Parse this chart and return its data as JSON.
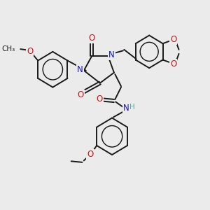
{
  "background_color": "#ebebeb",
  "bond_color": "#1a1a1a",
  "N_color": "#1414cc",
  "O_color": "#cc1414",
  "H_color": "#5aabab",
  "font_size": 8.5,
  "fig_width": 3.0,
  "fig_height": 3.0,
  "lw": 1.4,
  "xlim": [
    0,
    10
  ],
  "ylim": [
    0,
    10
  ]
}
